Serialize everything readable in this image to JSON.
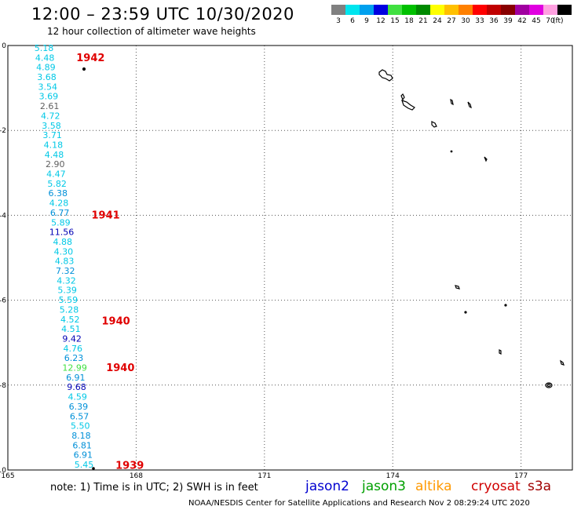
{
  "header": {
    "title": "12:00 – 23:59 UTC 10/30/2020",
    "subtitle": "12 hour collection of altimeter wave heights"
  },
  "colorbar": {
    "unit": "(ft)",
    "bins": [
      {
        "label": "3",
        "color": "#808080"
      },
      {
        "label": "6",
        "color": "#00e5ee"
      },
      {
        "label": "9",
        "color": "#00a0ee"
      },
      {
        "label": "12",
        "color": "#0000e0"
      },
      {
        "label": "15",
        "color": "#40e040"
      },
      {
        "label": "18",
        "color": "#00c000"
      },
      {
        "label": "21",
        "color": "#008a00"
      },
      {
        "label": "24",
        "color": "#ffff00"
      },
      {
        "label": "27",
        "color": "#ffc000"
      },
      {
        "label": "30",
        "color": "#ff8000"
      },
      {
        "label": "33",
        "color": "#ff0000"
      },
      {
        "label": "36",
        "color": "#c00000"
      },
      {
        "label": "39",
        "color": "#880000"
      },
      {
        "label": "42",
        "color": "#a000a0"
      },
      {
        "label": "45",
        "color": "#e000e0"
      },
      {
        "label": "70",
        "color": "#ffa0e0"
      },
      {
        "label": "",
        "color": "#000000"
      }
    ]
  },
  "map": {
    "lon_ticks": [
      "165",
      "168",
      "171",
      "174",
      "177"
    ],
    "lat_ticks": [
      "0",
      "-2",
      "-4",
      "-6",
      "-8",
      "-10"
    ],
    "pass_labels": [
      {
        "label": "1942",
        "lat": -0.3
      },
      {
        "label": "1941",
        "lat": -4.0
      },
      {
        "label": "1940",
        "lat": -6.5
      },
      {
        "label": "1940",
        "lat": -7.6
      },
      {
        "label": "1939",
        "lat": -9.9
      }
    ],
    "swh_values": [
      {
        "text": "5.18",
        "color": "#00c8e6"
      },
      {
        "text": "4.48",
        "color": "#00c8e6"
      },
      {
        "text": "4.89",
        "color": "#00c8e6"
      },
      {
        "text": "3.68",
        "color": "#00c8e6"
      },
      {
        "text": "3.54",
        "color": "#00c8e6"
      },
      {
        "text": "3.69",
        "color": "#00c8e6"
      },
      {
        "text": "2.61",
        "color": "#606060"
      },
      {
        "text": "4.72",
        "color": "#00c8e6"
      },
      {
        "text": "3.58",
        "color": "#00c8e6"
      },
      {
        "text": "3.71",
        "color": "#00c8e6"
      },
      {
        "text": "4.18",
        "color": "#00c8e6"
      },
      {
        "text": "4.48",
        "color": "#00c8e6"
      },
      {
        "text": "2.90",
        "color": "#606060"
      },
      {
        "text": "4.47",
        "color": "#00c8e6"
      },
      {
        "text": "5.82",
        "color": "#00c8e6"
      },
      {
        "text": "6.38",
        "color": "#0090d8"
      },
      {
        "text": "4.28",
        "color": "#00c8e6"
      },
      {
        "text": "6.77",
        "color": "#0090d8"
      },
      {
        "text": "5.89",
        "color": "#00c8e6"
      },
      {
        "text": "11.56",
        "color": "#0000b4"
      },
      {
        "text": "4.88",
        "color": "#00c8e6"
      },
      {
        "text": "4.30",
        "color": "#00c8e6"
      },
      {
        "text": "4.83",
        "color": "#00c8e6"
      },
      {
        "text": "7.32",
        "color": "#0090d8"
      },
      {
        "text": "4.32",
        "color": "#00c8e6"
      },
      {
        "text": "5.39",
        "color": "#00c8e6"
      },
      {
        "text": "5.59",
        "color": "#00c8e6"
      },
      {
        "text": "5.28",
        "color": "#00c8e6"
      },
      {
        "text": "4.52",
        "color": "#00c8e6"
      },
      {
        "text": "4.51",
        "color": "#00c8e6"
      },
      {
        "text": "9.42",
        "color": "#0000b4"
      },
      {
        "text": "4.76",
        "color": "#00c8e6"
      },
      {
        "text": "6.23",
        "color": "#0090d8"
      },
      {
        "text": "12.99",
        "color": "#40e040"
      },
      {
        "text": "6.91",
        "color": "#0090d8"
      },
      {
        "text": "9.68",
        "color": "#0000b4"
      },
      {
        "text": "4.59",
        "color": "#00c8e6"
      },
      {
        "text": "6.39",
        "color": "#0090d8"
      },
      {
        "text": "6.57",
        "color": "#0090d8"
      },
      {
        "text": "5.50",
        "color": "#00c8e6"
      },
      {
        "text": "8.18",
        "color": "#0090d8"
      },
      {
        "text": "6.81",
        "color": "#0090d8"
      },
      {
        "text": "6.91",
        "color": "#0090d8"
      },
      {
        "text": "5.45",
        "color": "#00c8e6"
      }
    ]
  },
  "legend": {
    "note": "note:  1) Time is in UTC;  2) SWH is in feet",
    "satellites": [
      {
        "name": "jason2",
        "color": "#0000d0"
      },
      {
        "name": "jason3",
        "color": "#00a000"
      },
      {
        "name": "altika",
        "color": "#ff9900"
      },
      {
        "name": "cryosat",
        "color": "#d00000"
      },
      {
        "name": "s3a",
        "color": "#a00000"
      }
    ]
  },
  "footer": {
    "credit": "NOAA/NESDIS Center for Satellite Applications and Research    Nov  2 08:29:24 UTC 2020"
  }
}
